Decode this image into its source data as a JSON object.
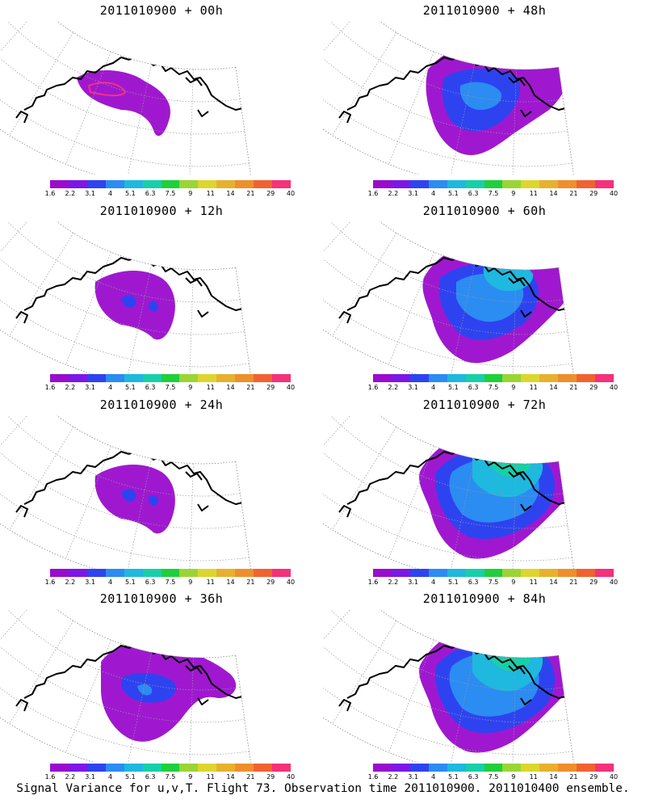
{
  "colorbar": {
    "colors": [
      "#9a0ccd",
      "#7d17e8",
      "#2e43f0",
      "#2b8cf2",
      "#1fb8de",
      "#18cfa9",
      "#1fcf3b",
      "#9ad534",
      "#dcd62e",
      "#e7b12e",
      "#ee8f2c",
      "#f06330",
      "#f4317a"
    ],
    "ticks": [
      "1.6",
      "2.2",
      "3.1",
      "4",
      "5.1",
      "6.3",
      "7.5",
      "9",
      "11",
      "14",
      "21",
      "29",
      "40"
    ]
  },
  "panels": [
    {
      "title": "2011010900 + 00h",
      "level": 0
    },
    {
      "title": "2011010900 + 48h",
      "level": 3
    },
    {
      "title": "2011010900 + 12h",
      "level": 1
    },
    {
      "title": "2011010900 + 60h",
      "level": 4
    },
    {
      "title": "2011010900 + 24h",
      "level": 1
    },
    {
      "title": "2011010900 + 72h",
      "level": 5
    },
    {
      "title": "2011010900 + 36h",
      "level": 2
    },
    {
      "title": "2011010900 + 84h",
      "level": 5
    }
  ],
  "caption": "Signal Variance for u,v,T. Flight 73. Observation time 2011010900. 2011010400 ensemble."
}
